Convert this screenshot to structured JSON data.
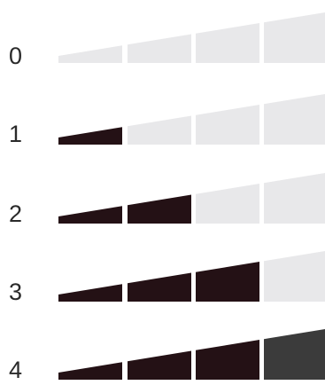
{
  "colors": {
    "filled": "#241115",
    "filled_last": "#3b3b3b",
    "empty": "#e8e8ea",
    "background": "#ffffff"
  },
  "rows": [
    {
      "label": "0",
      "filled_bars": 0,
      "total_bars": 4
    },
    {
      "label": "1",
      "filled_bars": 1,
      "total_bars": 4
    },
    {
      "label": "2",
      "filled_bars": 2,
      "total_bars": 4
    },
    {
      "label": "3",
      "filled_bars": 3,
      "total_bars": 4
    },
    {
      "label": "4",
      "filled_bars": 4,
      "total_bars": 4
    }
  ]
}
